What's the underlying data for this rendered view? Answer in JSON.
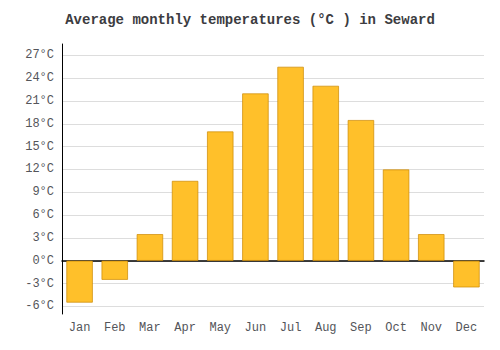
{
  "chart_data": {
    "type": "bar",
    "title": "Average monthly temperatures (°C ) in Seward",
    "categories": [
      "Jan",
      "Feb",
      "Mar",
      "Apr",
      "May",
      "Jun",
      "Jul",
      "Aug",
      "Sep",
      "Oct",
      "Nov",
      "Dec"
    ],
    "values": [
      -5.5,
      -2.5,
      3.5,
      10.5,
      17.0,
      22.0,
      25.5,
      23.0,
      18.5,
      12.0,
      3.5,
      -3.5
    ],
    "color": "#FFC02A",
    "ylim": [
      -7,
      28.5
    ],
    "yticks": [
      {
        "value": -6,
        "label": "-6°C"
      },
      {
        "value": -3,
        "label": "-3°C"
      },
      {
        "value": 0,
        "label": "0°C"
      },
      {
        "value": 3,
        "label": "3°C"
      },
      {
        "value": 6,
        "label": "6°C"
      },
      {
        "value": 9,
        "label": "9°C"
      },
      {
        "value": 12,
        "label": "12°C"
      },
      {
        "value": 15,
        "label": "15°C"
      },
      {
        "value": 18,
        "label": "18°C"
      },
      {
        "value": 21,
        "label": "21°C"
      },
      {
        "value": 24,
        "label": "24°C"
      },
      {
        "value": 27,
        "label": "27°C"
      }
    ],
    "grid": true
  }
}
